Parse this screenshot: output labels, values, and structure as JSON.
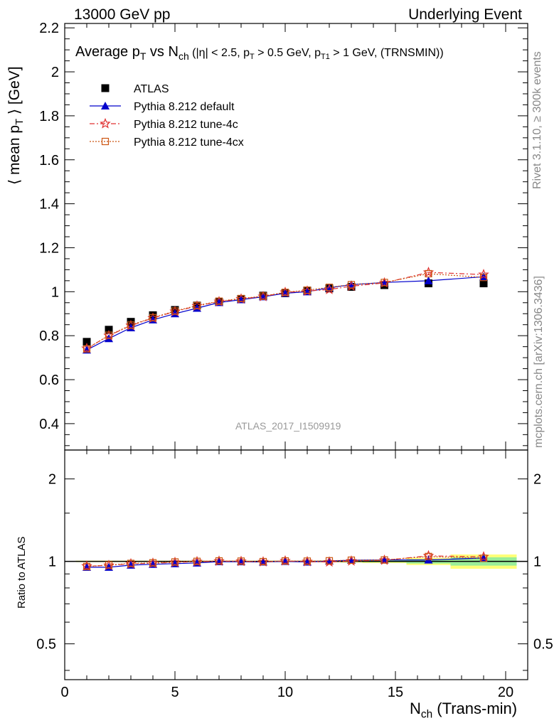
{
  "header": {
    "left": "13000 GeV pp",
    "right": "Underlying Event"
  },
  "side_text": {
    "top": "Rivet 3.1.10, ≥ 300k events",
    "bottom": "mcplots.cern.ch [arXiv:1306.3436]"
  },
  "watermark": "ATLAS_2017_I1509919",
  "plot_title": {
    "prefix": "Average p",
    "pt_sub": "T",
    "vs": " vs N",
    "ch_sub": "ch",
    "cuts_a": " (|η| < 2.5, p",
    "cuts_sub1": "T",
    "cuts_b": " > 0.5 GeV, p",
    "cuts_sub2": "T1",
    "cuts_c": " > 1 GeV, (TRNSMIN))"
  },
  "y_axis_label": {
    "prefix": "⟨ mean p",
    "sub": "T",
    "suffix": " ⟩ [GeV]"
  },
  "ratio_axis_label": "Ratio to ATLAS",
  "x_axis_label": {
    "prefix": "N",
    "sub": "ch",
    "suffix": " (Trans-min)"
  },
  "colors": {
    "data": "#000000",
    "default": "#0000cc",
    "tune4c": "#e03030",
    "tune4cx": "#cc5511",
    "band_inner": "#99ee99",
    "band_outer": "#ffff77"
  },
  "chart_data": [
    {
      "type": "scatter",
      "panel": "main",
      "xlim": [
        0,
        21
      ],
      "ylim": [
        0.28,
        2.22
      ],
      "x_ticks": [
        0,
        5,
        10,
        15,
        20
      ],
      "y_ticks": [
        "0.4",
        "0.6",
        "0.8",
        "1",
        "1.2",
        "1.4",
        "1.6",
        "1.8",
        "2",
        "2.2"
      ],
      "legend_position": "top-left",
      "x": [
        1,
        2,
        3,
        4,
        5,
        6,
        7,
        8,
        9,
        10,
        11,
        12,
        13,
        14.5,
        16.5,
        19
      ],
      "series": [
        {
          "name": "ATLAS",
          "style": "data",
          "values": [
            0.772,
            0.827,
            0.863,
            0.893,
            0.917,
            0.937,
            0.953,
            0.967,
            0.982,
            0.993,
            1.005,
            1.015,
            1.022,
            1.03,
            1.038,
            1.038
          ]
        },
        {
          "name": "Pythia 8.212 default",
          "style": "default",
          "values": [
            0.735,
            0.787,
            0.836,
            0.872,
            0.9,
            0.925,
            0.951,
            0.964,
            0.977,
            0.993,
            1.0,
            1.018,
            1.032,
            1.042,
            1.05,
            1.068
          ]
        },
        {
          "name": "Pythia 8.212 tune-4c",
          "style": "tune4c",
          "values": [
            0.742,
            0.8,
            0.846,
            0.88,
            0.91,
            0.935,
            0.955,
            0.967,
            0.978,
            0.997,
            1.003,
            1.01,
            1.025,
            1.04,
            1.088,
            1.078
          ]
        },
        {
          "name": "Pythia 8.212 tune-4cx",
          "style": "tune4cx",
          "values": [
            0.74,
            0.802,
            0.848,
            0.882,
            0.912,
            0.937,
            0.957,
            0.969,
            0.98,
            0.997,
            1.007,
            1.02,
            1.032,
            1.042,
            1.082,
            1.065
          ]
        }
      ]
    },
    {
      "type": "scatter",
      "panel": "ratio",
      "xlim": [
        0,
        21
      ],
      "ylim": [
        0.37,
        2.55
      ],
      "log_y": true,
      "y_ticks": [
        "0.5",
        "1",
        "2"
      ],
      "x": [
        1,
        2,
        3,
        4,
        5,
        6,
        7,
        8,
        9,
        10,
        11,
        12,
        13,
        14.5,
        16.5,
        19
      ],
      "band_x_edges": [
        0.5,
        1.5,
        2.5,
        3.5,
        4.5,
        5.5,
        6.5,
        7.5,
        8.5,
        9.5,
        10.5,
        11.5,
        12.5,
        13.5,
        15.5,
        17.5,
        20.5
      ],
      "band_inner": [
        0.004,
        0.004,
        0.004,
        0.004,
        0.004,
        0.004,
        0.004,
        0.004,
        0.004,
        0.004,
        0.004,
        0.005,
        0.006,
        0.008,
        0.018,
        0.035
      ],
      "band_outer": [
        0.006,
        0.006,
        0.006,
        0.006,
        0.006,
        0.006,
        0.006,
        0.006,
        0.006,
        0.006,
        0.006,
        0.008,
        0.01,
        0.014,
        0.03,
        0.06
      ],
      "series": [
        {
          "name": "Pythia 8.212 default",
          "style": "default",
          "values": [
            0.952,
            0.952,
            0.969,
            0.976,
            0.981,
            0.987,
            0.998,
            0.997,
            0.995,
            1.0,
            0.995,
            1.003,
            1.01,
            1.012,
            1.012,
            1.029
          ]
        },
        {
          "name": "Pythia 8.212 tune-4c",
          "style": "tune4c",
          "values": [
            0.961,
            0.967,
            0.98,
            0.985,
            0.992,
            0.998,
            1.002,
            1.0,
            0.996,
            1.004,
            0.998,
            0.995,
            1.003,
            1.01,
            1.048,
            1.039
          ]
        },
        {
          "name": "Pythia 8.212 tune-4cx",
          "style": "tune4cx",
          "values": [
            0.958,
            0.97,
            0.983,
            0.988,
            0.995,
            1.0,
            1.004,
            1.002,
            0.998,
            1.004,
            1.002,
            1.005,
            1.01,
            1.012,
            1.042,
            1.026
          ]
        }
      ]
    }
  ]
}
